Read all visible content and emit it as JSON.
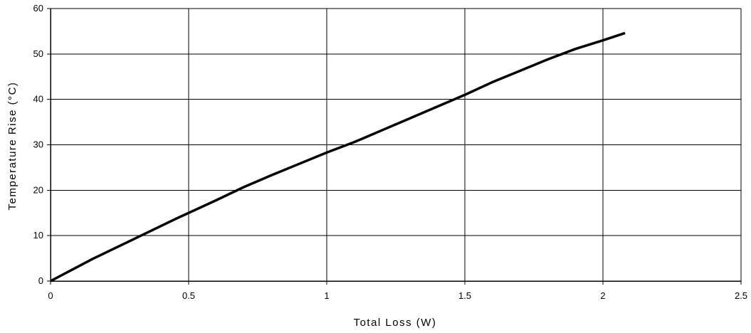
{
  "chart_data": {
    "type": "line",
    "title": "",
    "xlabel": "Total Loss (W)",
    "ylabel": "Temperature Rise (°C)",
    "xlim": [
      0,
      2.5
    ],
    "ylim": [
      0,
      60
    ],
    "x_ticks": [
      0,
      0.5,
      1,
      1.5,
      2,
      2.5
    ],
    "x_tick_labels": [
      "0",
      "0.5",
      "1",
      "1.5",
      "2",
      "2.5"
    ],
    "y_ticks": [
      0,
      10,
      20,
      30,
      40,
      50,
      60
    ],
    "y_tick_labels": [
      "0",
      "10",
      "20",
      "30",
      "40",
      "50",
      "60"
    ],
    "grid": true,
    "legend": "none",
    "series": [
      {
        "color": "#000000",
        "x": [
          0,
          0.15,
          0.3,
          0.45,
          0.6,
          0.7,
          0.8,
          0.9,
          1.0,
          1.1,
          1.2,
          1.3,
          1.4,
          1.5,
          1.6,
          1.7,
          1.8,
          1.9,
          2.0,
          2.08
        ],
        "y": [
          0,
          4.8,
          9.2,
          13.6,
          17.8,
          20.7,
          23.3,
          25.8,
          28.3,
          30.6,
          33.2,
          35.8,
          38.4,
          41.0,
          43.8,
          46.3,
          48.8,
          51.1,
          53.0,
          54.6
        ]
      }
    ]
  }
}
